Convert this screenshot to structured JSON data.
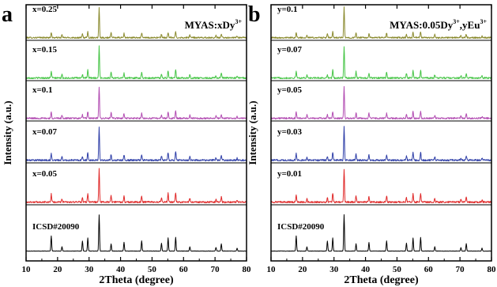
{
  "figure": {
    "background": "#ffffff",
    "axis_color": "#000000"
  },
  "chart_data": [
    {
      "panel_label": "a",
      "type": "line",
      "title": "MYAS:xDy",
      "title_sup": "3+",
      "xlabel": "2Theta (degree)",
      "ylabel": "Intensity (a.u.)",
      "xlim": [
        10,
        80
      ],
      "x_ticks": [
        10,
        20,
        30,
        40,
        50,
        60,
        70,
        80
      ],
      "grid": false,
      "peaks": [
        18.0,
        21.4,
        27.9,
        29.6,
        33.2,
        37.0,
        41.1,
        46.7,
        53.0,
        55.1,
        57.5,
        62.0,
        70.3,
        72.0,
        77.0
      ],
      "series": [
        {
          "name": "x=0.25",
          "color": "#8a8a2e",
          "peak_intensities": [
            0.18,
            0.1,
            0.12,
            0.2,
            1.0,
            0.16,
            0.14,
            0.16,
            0.12,
            0.18,
            0.2,
            0.1,
            0.08,
            0.12,
            0.06
          ]
        },
        {
          "name": "x=0.15",
          "color": "#45c445",
          "peak_intensities": [
            0.22,
            0.1,
            0.12,
            0.25,
            1.0,
            0.2,
            0.16,
            0.18,
            0.14,
            0.24,
            0.26,
            0.1,
            0.08,
            0.14,
            0.06
          ]
        },
        {
          "name": "x=0.1",
          "color": "#b24cb2",
          "peak_intensities": [
            0.2,
            0.1,
            0.12,
            0.22,
            1.0,
            0.18,
            0.15,
            0.16,
            0.13,
            0.22,
            0.24,
            0.1,
            0.08,
            0.13,
            0.06
          ]
        },
        {
          "name": "x=0.07",
          "color": "#2f3fa8",
          "peak_intensities": [
            0.2,
            0.1,
            0.12,
            0.24,
            1.0,
            0.18,
            0.16,
            0.18,
            0.14,
            0.24,
            0.26,
            0.1,
            0.08,
            0.14,
            0.06
          ]
        },
        {
          "name": "x=0.05",
          "color": "#e02828",
          "peak_intensities": [
            0.24,
            0.1,
            0.13,
            0.26,
            1.0,
            0.2,
            0.17,
            0.19,
            0.15,
            0.26,
            0.28,
            0.11,
            0.08,
            0.15,
            0.06
          ]
        },
        {
          "name": "ICSD#20090",
          "color": "#000000",
          "peak_intensities": [
            0.42,
            0.12,
            0.28,
            0.36,
            1.0,
            0.2,
            0.24,
            0.28,
            0.22,
            0.36,
            0.38,
            0.12,
            0.1,
            0.2,
            0.08
          ]
        }
      ]
    },
    {
      "panel_label": "b",
      "type": "line",
      "title": "MYAS:0.05Dy",
      "title_sup": "3+",
      "title_tail": ",yEu",
      "title_sup2": "3+",
      "xlabel": "2Theta (degree)",
      "ylabel": "Intensity (a.u.)",
      "xlim": [
        10,
        80
      ],
      "x_ticks": [
        10,
        20,
        30,
        40,
        50,
        60,
        70,
        80
      ],
      "grid": false,
      "peaks": [
        18.0,
        21.4,
        27.9,
        29.6,
        33.2,
        37.0,
        41.1,
        46.7,
        53.0,
        55.1,
        57.5,
        62.0,
        70.3,
        72.0,
        77.0
      ],
      "series": [
        {
          "name": "y=0.1",
          "color": "#8a8a2e",
          "peak_intensities": [
            0.18,
            0.1,
            0.12,
            0.2,
            1.0,
            0.16,
            0.14,
            0.16,
            0.12,
            0.18,
            0.2,
            0.1,
            0.08,
            0.12,
            0.06
          ]
        },
        {
          "name": "y=0.07",
          "color": "#45c445",
          "peak_intensities": [
            0.22,
            0.1,
            0.12,
            0.25,
            1.0,
            0.2,
            0.16,
            0.18,
            0.14,
            0.24,
            0.26,
            0.1,
            0.08,
            0.14,
            0.06
          ]
        },
        {
          "name": "y=0.05",
          "color": "#b24cb2",
          "peak_intensities": [
            0.2,
            0.1,
            0.12,
            0.22,
            1.0,
            0.18,
            0.15,
            0.16,
            0.13,
            0.22,
            0.24,
            0.1,
            0.08,
            0.13,
            0.06
          ]
        },
        {
          "name": "y=0.03",
          "color": "#2f3fa8",
          "peak_intensities": [
            0.2,
            0.1,
            0.12,
            0.24,
            1.0,
            0.18,
            0.16,
            0.18,
            0.14,
            0.24,
            0.26,
            0.1,
            0.08,
            0.14,
            0.06
          ]
        },
        {
          "name": "y=0.01",
          "color": "#e02828",
          "peak_intensities": [
            0.24,
            0.1,
            0.13,
            0.26,
            1.0,
            0.2,
            0.17,
            0.19,
            0.15,
            0.26,
            0.28,
            0.11,
            0.08,
            0.15,
            0.06
          ]
        },
        {
          "name": "ICSD#20090",
          "color": "#000000",
          "peak_intensities": [
            0.42,
            0.12,
            0.28,
            0.36,
            1.0,
            0.2,
            0.24,
            0.28,
            0.22,
            0.36,
            0.38,
            0.12,
            0.1,
            0.2,
            0.08
          ]
        }
      ]
    }
  ]
}
